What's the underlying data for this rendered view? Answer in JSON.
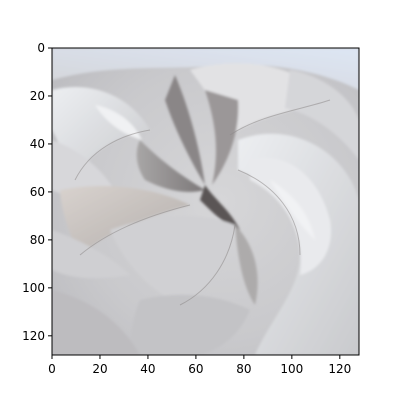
{
  "chart_data": {
    "type": "image",
    "image_subject": "grayscale close-up of rose petals",
    "grid": false,
    "xlim": [
      0,
      128
    ],
    "ylim": [
      128,
      0
    ],
    "x_ticks": [
      "0",
      "20",
      "40",
      "60",
      "80",
      "100",
      "120"
    ],
    "y_ticks": [
      "0",
      "20",
      "40",
      "60",
      "80",
      "100",
      "120"
    ],
    "colors": {
      "frame": "#000000",
      "petal_light": "#e8e9ec",
      "petal_mid": "#c4c5c8",
      "petal_shadow": "#7f7c7b",
      "petal_dark": "#4a4545",
      "cool_tint": "#dde6f4"
    }
  }
}
